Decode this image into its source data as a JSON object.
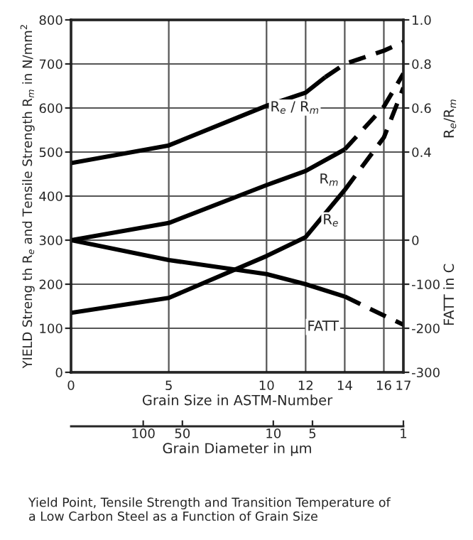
{
  "chart_data": {
    "type": "line",
    "xlabel": "Grain Size in ASTM-Number",
    "ylabel": "YIELD Streng th R$_{e}$ and Tensile Strength R$_{m}$ in N/mm$^{2}$",
    "y2label": "R$_{e}$/R$_{m}$",
    "y3label": "FATT in C",
    "x2label": "Grain Diameter in µm",
    "xlim": [
      0,
      17
    ],
    "xticks": [
      0,
      5,
      10,
      12,
      14,
      16,
      17
    ],
    "x2lim": [
      359,
      1
    ],
    "x2ticks": [
      100,
      50,
      10,
      5,
      1
    ],
    "log": "x2",
    "ylim": [
      0,
      800
    ],
    "yticks": [
      0,
      100,
      200,
      300,
      400,
      500,
      600,
      700,
      800
    ],
    "y2lim": [
      -0.6,
      1.0
    ],
    "y2ticks": [
      0.4,
      0.6,
      0.8,
      {
        "value": 1.0,
        "label": "1.0"
      }
    ],
    "y3lim": [
      -300,
      500
    ],
    "y3ticks": [
      -300,
      -200,
      -100,
      0
    ],
    "grid": true,
    "legend": false,
    "marker": "none",
    "series": [
      {
        "name": "R$_{e}$ / R$_{m}$",
        "axis": "y2",
        "color": "#000000",
        "line_style": "solid",
        "x": [
          0,
          5,
          10,
          12,
          13
        ],
        "values": [
          0.35,
          0.43,
          0.61,
          0.67,
          0.74
        ]
      },
      {
        "axis": "y2",
        "color": "#000000",
        "line_style": "dashed",
        "x": [
          13,
          14,
          16,
          17
        ],
        "values": [
          0.74,
          0.8,
          0.86,
          0.9
        ]
      },
      {
        "name": "R$_{m}$",
        "color": "#000000",
        "line_style": "solid",
        "x": [
          0,
          5,
          10,
          12,
          14
        ],
        "values": [
          300,
          339,
          425,
          457,
          506
        ]
      },
      {
        "color": "#000000",
        "line_style": "dashed",
        "x": [
          14,
          16,
          17
        ],
        "values": [
          506,
          603,
          678
        ]
      },
      {
        "name": "R$_{e}$",
        "color": "#000000",
        "line_style": "solid",
        "x": [
          0,
          5,
          10,
          12,
          14
        ],
        "values": [
          135,
          169,
          264,
          307,
          414
        ]
      },
      {
        "color": "#000000",
        "line_style": "dashed",
        "x": [
          14,
          16,
          17
        ],
        "values": [
          414,
          533,
          646
        ]
      },
      {
        "name": "FATT",
        "axis": "y3",
        "color": "#000000",
        "line_style": "solid",
        "x": [
          0,
          5,
          10,
          12,
          14
        ],
        "values": [
          0,
          -45,
          -77,
          -100,
          -128
        ]
      },
      {
        "axis": "y3",
        "color": "#000000",
        "line_style": "dashed",
        "x": [
          14,
          16,
          17
        ],
        "values": [
          -128,
          -171,
          -192
        ]
      }
    ],
    "annotations": [
      "Yield Point, Tensile Strength and Transition Temperature of\na Low Carbon Steel as a Function of Grain Size"
    ]
  }
}
